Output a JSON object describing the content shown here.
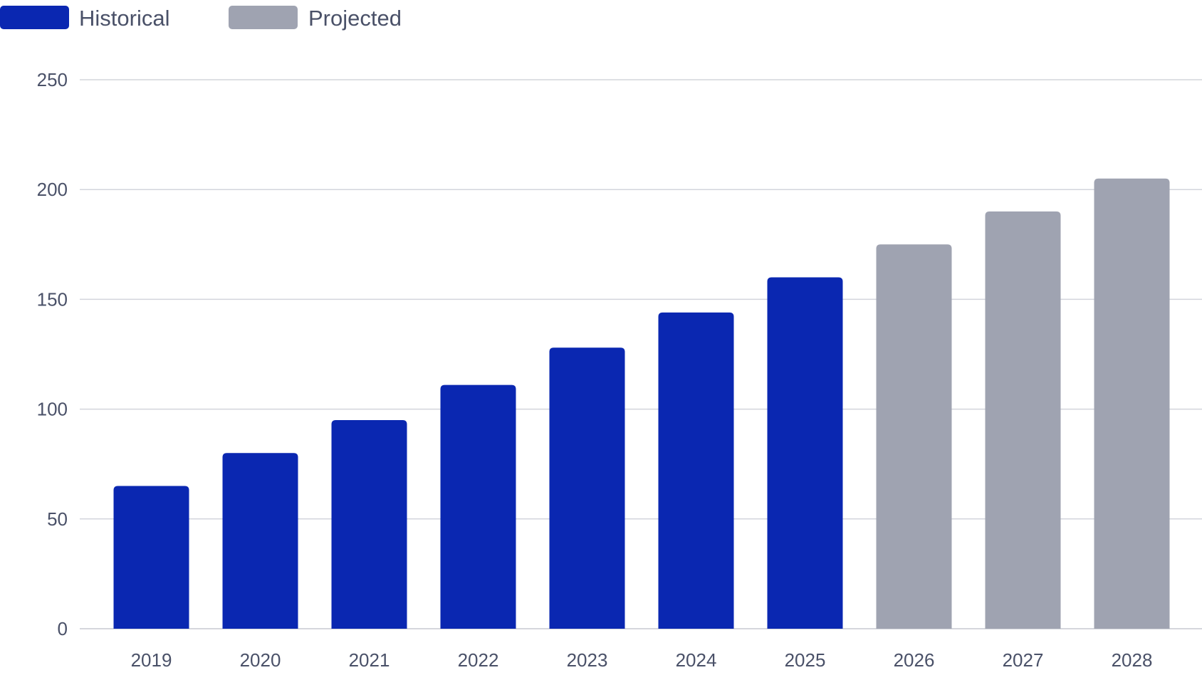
{
  "chart_data": {
    "type": "bar",
    "title": "",
    "xlabel": "",
    "ylabel": "",
    "categories": [
      "2019",
      "2020",
      "2021",
      "2022",
      "2023",
      "2024",
      "2025",
      "2026",
      "2027",
      "2028"
    ],
    "values": [
      65,
      80,
      95,
      111,
      128,
      144,
      160,
      175,
      190,
      205
    ],
    "bar_groups": [
      "Historical",
      "Historical",
      "Historical",
      "Historical",
      "Historical",
      "Historical",
      "Historical",
      "Projected",
      "Projected",
      "Projected"
    ],
    "legend": {
      "placement": "top-left",
      "entries": [
        {
          "name": "Historical",
          "color": "#0a27b1"
        },
        {
          "name": "Projected",
          "color": "#9fa3b1"
        }
      ]
    },
    "ylim": [
      0,
      250
    ],
    "yticks": [
      "0",
      "50",
      "100",
      "150",
      "200",
      "250"
    ],
    "grid": true
  }
}
